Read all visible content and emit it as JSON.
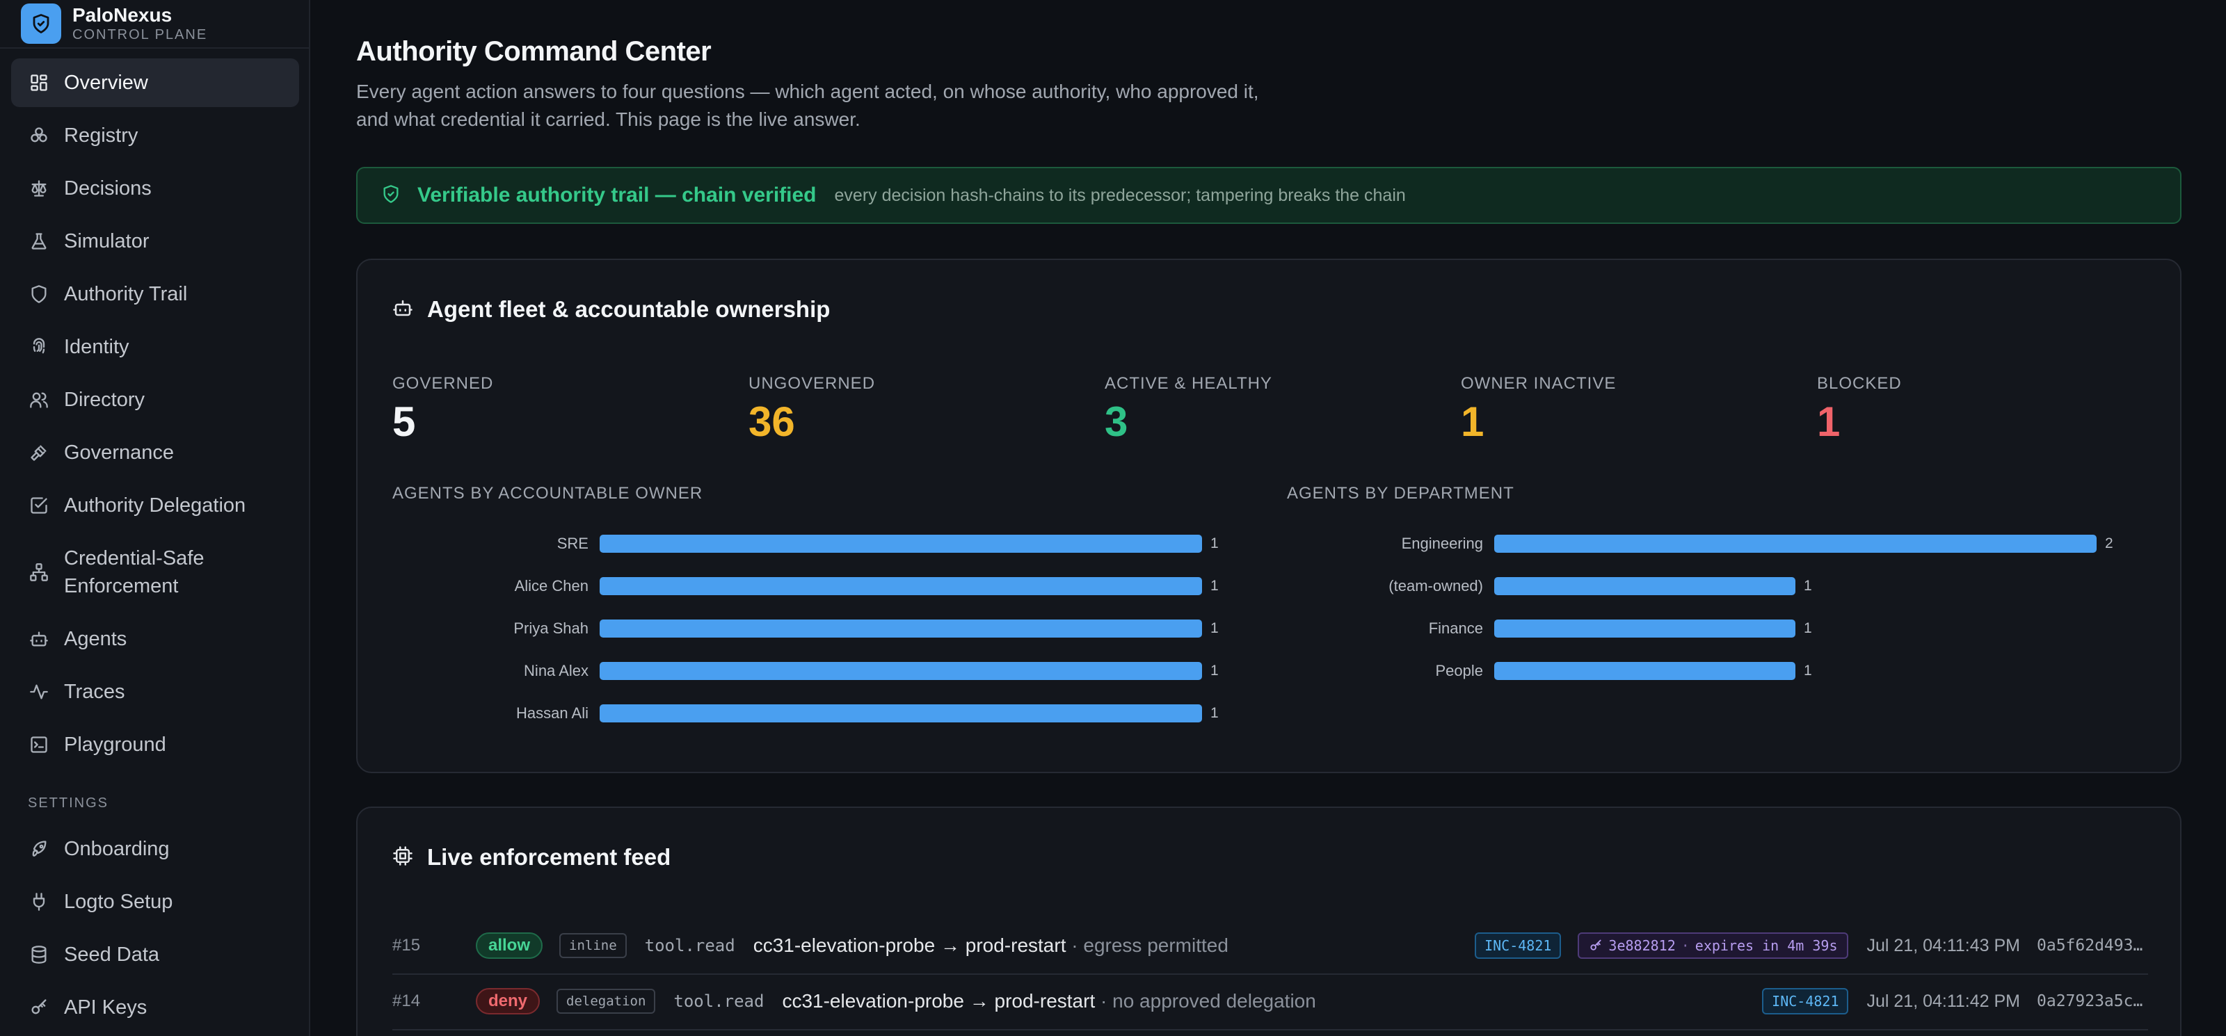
{
  "brand": {
    "name": "PaloNexus",
    "subtitle": "CONTROL PLANE"
  },
  "sidebar": {
    "items": [
      {
        "label": "Overview",
        "icon": "layout-grid-icon",
        "active": true
      },
      {
        "label": "Registry",
        "icon": "boxes-icon"
      },
      {
        "label": "Decisions",
        "icon": "scale-icon"
      },
      {
        "label": "Simulator",
        "icon": "flask-icon"
      },
      {
        "label": "Authority Trail",
        "icon": "shield-check-icon"
      },
      {
        "label": "Identity",
        "icon": "fingerprint-icon"
      },
      {
        "label": "Directory",
        "icon": "users-icon"
      },
      {
        "label": "Governance",
        "icon": "gavel-icon"
      },
      {
        "label": "Authority Delegation",
        "icon": "square-check-icon"
      },
      {
        "label": "Credential-Safe Enforcement",
        "icon": "network-icon"
      },
      {
        "label": "Agents",
        "icon": "bot-icon"
      },
      {
        "label": "Traces",
        "icon": "activity-icon"
      },
      {
        "label": "Playground",
        "icon": "terminal-icon"
      }
    ],
    "settings_label": "SETTINGS",
    "settings_items": [
      {
        "label": "Onboarding",
        "icon": "rocket-icon"
      },
      {
        "label": "Logto Setup",
        "icon": "plug-icon"
      },
      {
        "label": "Seed Data",
        "icon": "database-icon"
      },
      {
        "label": "API Keys",
        "icon": "key-icon"
      }
    ]
  },
  "page": {
    "title": "Authority Command Center",
    "description": "Every agent action answers to four questions — which agent acted, on whose authority, who approved it, and what credential it carried. This page is the live answer."
  },
  "banner": {
    "title": "Verifiable authority trail — chain verified",
    "subtitle": "every decision hash-chains to its predecessor; tampering breaks the chain"
  },
  "fleet": {
    "title": "Agent fleet & accountable ownership",
    "stats": [
      {
        "label": "GOVERNED",
        "value": "5",
        "color": "#f3f5f7"
      },
      {
        "label": "UNGOVERNED",
        "value": "36",
        "color": "#f2b52a"
      },
      {
        "label": "ACTIVE & HEALTHY",
        "value": "3",
        "color": "#2fc187"
      },
      {
        "label": "OWNER INACTIVE",
        "value": "1",
        "color": "#f2b52a"
      },
      {
        "label": "BLOCKED",
        "value": "1",
        "color": "#f0636a"
      }
    ],
    "by_owner_label": "AGENTS BY ACCOUNTABLE OWNER",
    "by_department_label": "AGENTS BY DEPARTMENT"
  },
  "chart_data": [
    {
      "type": "bar",
      "orientation": "horizontal",
      "title": "AGENTS BY ACCOUNTABLE OWNER",
      "categories": [
        "SRE",
        "Alice Chen",
        "Priya Shah",
        "Nina Alex",
        "Hassan Ali"
      ],
      "values": [
        1,
        1,
        1,
        1,
        1
      ],
      "xlim": [
        0,
        1
      ],
      "grid": false
    },
    {
      "type": "bar",
      "orientation": "horizontal",
      "title": "AGENTS BY DEPARTMENT",
      "categories": [
        "Engineering",
        "(team-owned)",
        "Finance",
        "People"
      ],
      "values": [
        2,
        1,
        1,
        1
      ],
      "xlim": [
        0,
        2
      ],
      "grid": false
    }
  ],
  "feed": {
    "title": "Live enforcement feed",
    "rows": [
      {
        "num": "#15",
        "decision": "allow",
        "mode": "inline",
        "tool": "tool.read",
        "agent": "cc31-elevation-probe",
        "target": "prod-restart",
        "reason": "· egress permitted",
        "incident": "INC-4821",
        "credential": "3e882812",
        "credential_expiry": "expires in 4m 39s",
        "time": "Jul 21, 04:11:43 PM",
        "hash": "0a5f62d493..."
      },
      {
        "num": "#14",
        "decision": "deny",
        "mode": "delegation",
        "tool": "tool.read",
        "agent": "cc31-elevation-probe",
        "target": "prod-restart",
        "reason": "· no approved delegation",
        "incident": "INC-4821",
        "credential": null,
        "credential_expiry": null,
        "time": "Jul 21, 04:11:42 PM",
        "hash": "0a27923a5c..."
      }
    ]
  }
}
